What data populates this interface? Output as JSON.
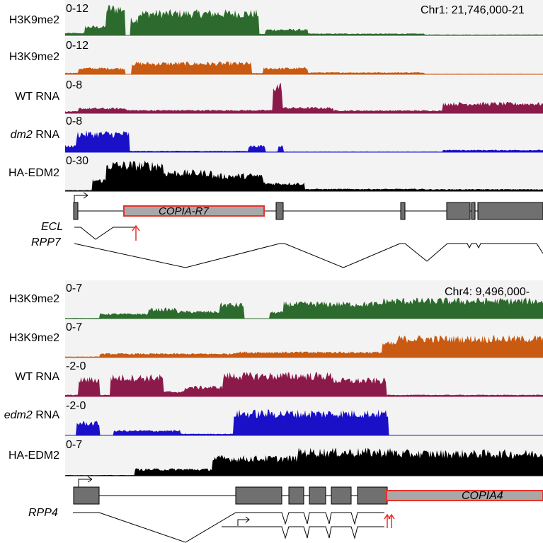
{
  "panels": [
    {
      "coords": "Chr1: 21,746,000-21",
      "tracks": [
        {
          "label": "H3K9me2",
          "range": "0-12",
          "color": "#2d6a2d"
        },
        {
          "label": "H3K9me2",
          "range": "0-12",
          "color": "#c85a12"
        },
        {
          "label": "WT RNA",
          "range": "0-8",
          "color": "#8b1a4a"
        },
        {
          "label_italic": "dm2",
          "label_rest": " RNA",
          "range": "0-8",
          "color": "#1a10c8"
        },
        {
          "label": "HA-EDM2",
          "range": "0-30",
          "color": "#000000"
        }
      ],
      "te_label": "COPIA-R7",
      "gene_labels": [
        "ECL",
        "RPP7"
      ]
    },
    {
      "coords": "Chr4: 9,496,000-",
      "tracks": [
        {
          "label": "H3K9me2",
          "range": "0-7",
          "color": "#2d6a2d"
        },
        {
          "label": "H3K9me2",
          "range": "0-7",
          "color": "#c85a12"
        },
        {
          "label": "WT RNA",
          "range": "-2-0",
          "color": "#8b1a4a"
        },
        {
          "label_italic": "edm2",
          "label_rest": " RNA",
          "range": "-2-0",
          "color": "#1a10c8"
        },
        {
          "label": "HA-EDM2",
          "range": "0-7",
          "color": "#000000"
        }
      ],
      "te_label": "COPIA4",
      "gene_labels": [
        "RPP4"
      ]
    }
  ]
}
